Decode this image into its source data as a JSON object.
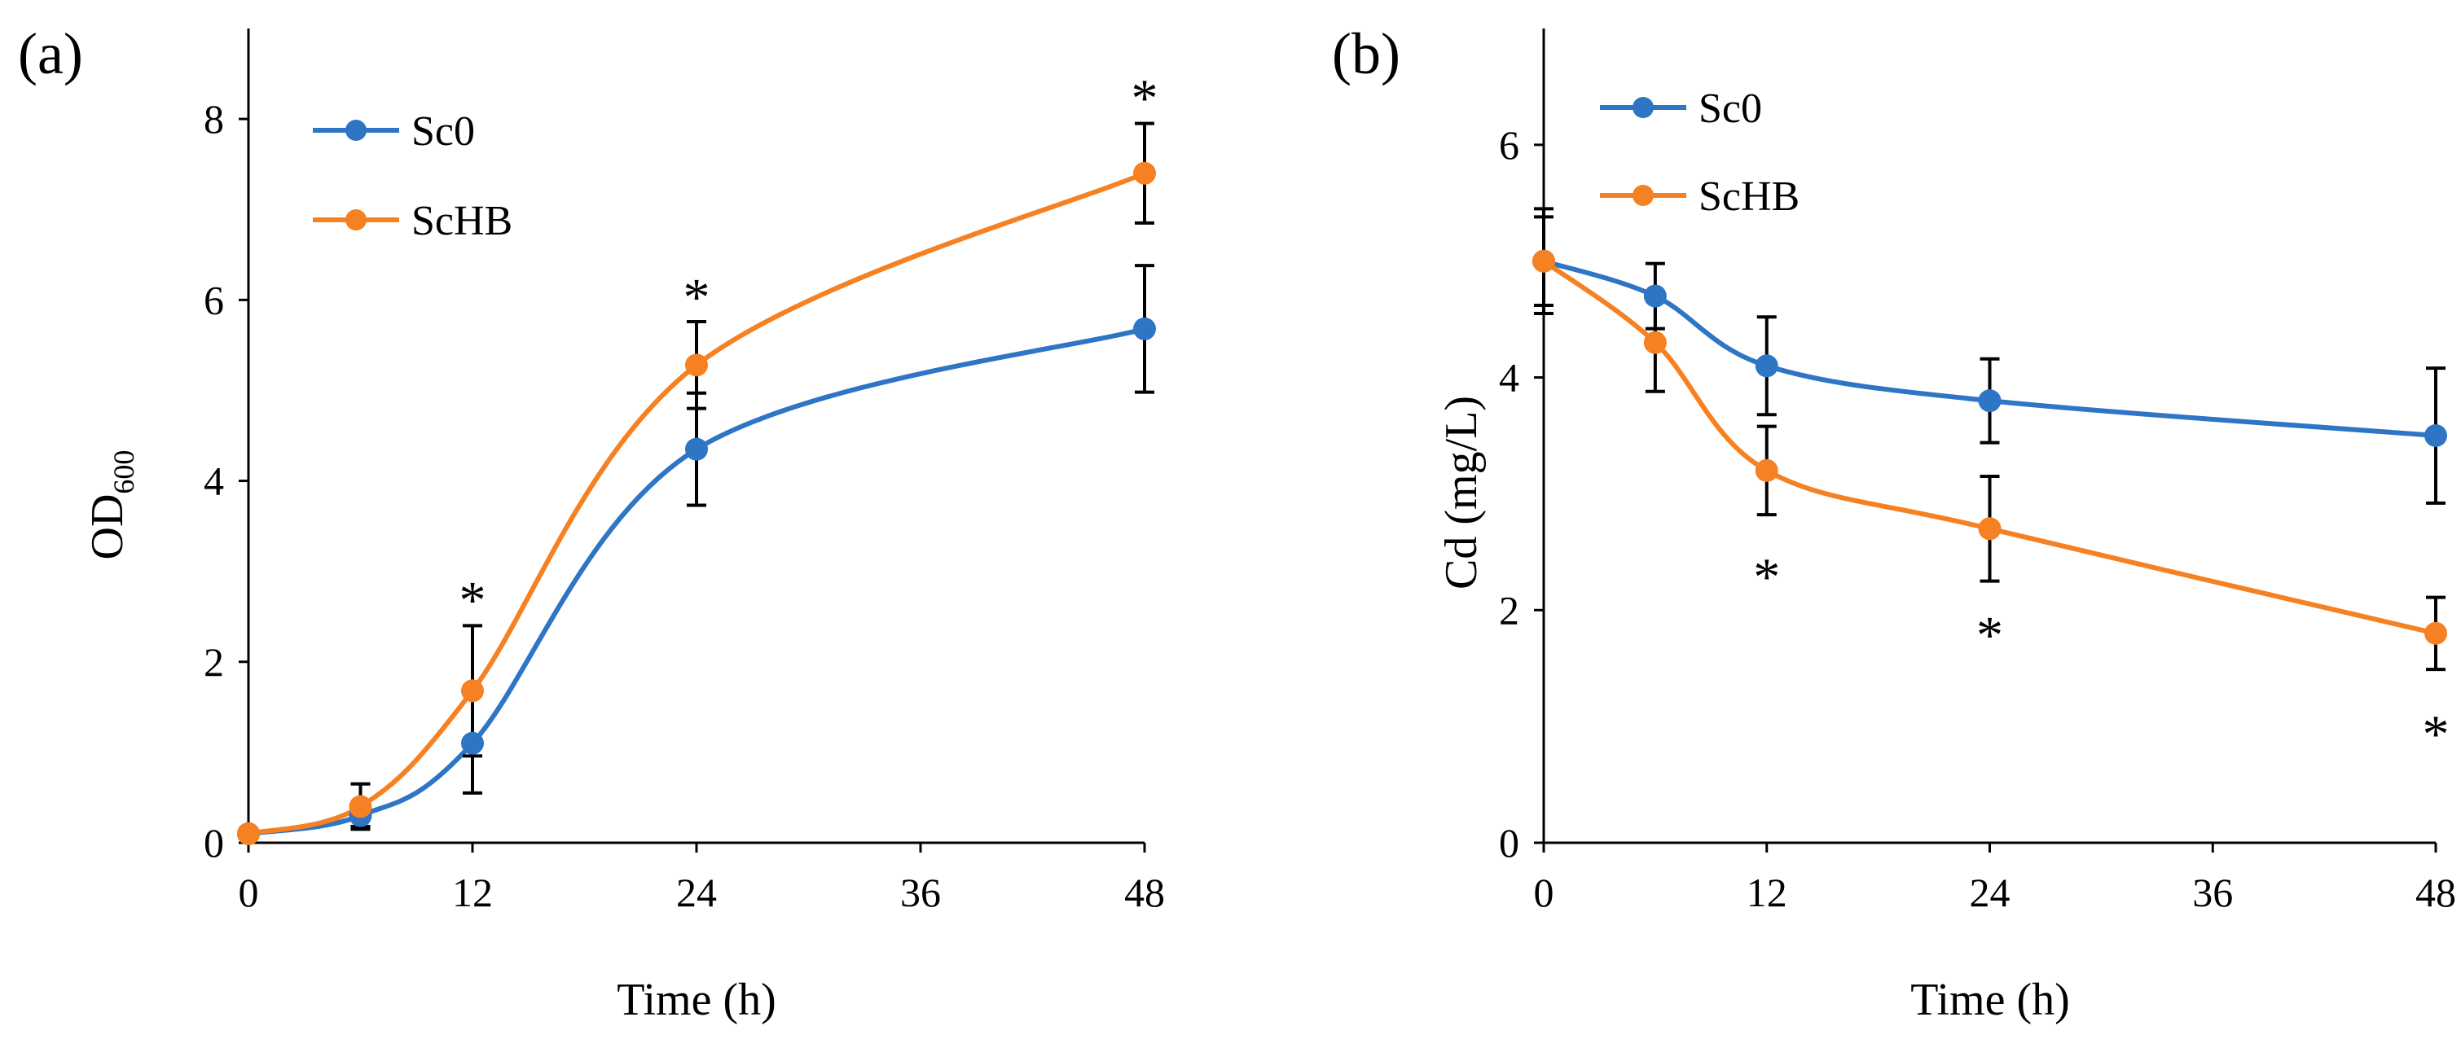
{
  "chart_data": [
    {
      "panel_label": "(a)",
      "type": "line",
      "xlabel": "Time (h)",
      "ylabel": "OD",
      "ylabel_subscript": "600",
      "xlim": [
        0,
        48
      ],
      "ylim": [
        0,
        9
      ],
      "xticks": [
        0,
        12,
        24,
        36,
        48
      ],
      "yticks": [
        0,
        2,
        4,
        6,
        8
      ],
      "legend_position": "top-left",
      "x": [
        0,
        6,
        12,
        24,
        48
      ],
      "series": [
        {
          "name": "Sc0",
          "color": "#2e75c6",
          "values": [
            0.1,
            0.3,
            1.1,
            4.35,
            5.68
          ],
          "errors": [
            0.05,
            0.12,
            0.55,
            0.62,
            0.7
          ]
        },
        {
          "name": "ScHB",
          "color": "#f58123",
          "values": [
            0.1,
            0.4,
            1.68,
            5.28,
            7.4
          ],
          "errors": [
            0.05,
            0.25,
            0.72,
            0.48,
            0.55
          ]
        }
      ],
      "annotations": [
        {
          "x": 12,
          "y": 2.7,
          "text": "*"
        },
        {
          "x": 24,
          "y": 6.05,
          "text": "*"
        },
        {
          "x": 48,
          "y": 8.25,
          "text": "*"
        }
      ]
    },
    {
      "panel_label": "(b)",
      "type": "line",
      "xlabel": "Time (h)",
      "ylabel": "Cd (mg/L)",
      "ylabel_subscript": "",
      "xlim": [
        0,
        48
      ],
      "ylim": [
        0,
        7
      ],
      "xticks": [
        0,
        12,
        24,
        36,
        48
      ],
      "yticks": [
        0,
        2,
        4,
        6
      ],
      "legend_position": "top-left",
      "x": [
        0,
        6,
        12,
        24,
        48
      ],
      "series": [
        {
          "name": "Sc0",
          "color": "#2e75c6",
          "values": [
            5.0,
            4.7,
            4.1,
            3.8,
            3.5
          ],
          "errors": [
            0.45,
            0.28,
            0.42,
            0.36,
            0.58
          ]
        },
        {
          "name": "ScHB",
          "color": "#f58123",
          "values": [
            5.0,
            4.3,
            3.2,
            2.7,
            1.8
          ],
          "errors": [
            0.38,
            0.42,
            0.38,
            0.45,
            0.31
          ]
        }
      ],
      "annotations": [
        {
          "x": 12,
          "y": 2.3,
          "text": "*"
        },
        {
          "x": 24,
          "y": 1.8,
          "text": "*"
        },
        {
          "x": 48,
          "y": 0.95,
          "text": "*"
        }
      ]
    }
  ]
}
